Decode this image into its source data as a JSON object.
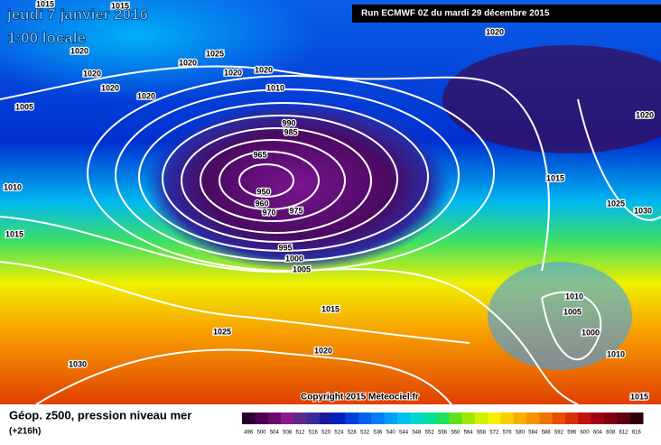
{
  "header": {
    "date": "jeudi 7 janvier 2016",
    "time": "1:00 locale",
    "run": "Run ECMWF 0Z du mardi 29 décembre 2015"
  },
  "map": {
    "copyright": "Copyright 2015 Meteociel.fr",
    "isobar_labels": [
      "1015",
      "1015",
      "1020",
      "1020",
      "1025",
      "1020",
      "1020",
      "1020",
      "1020",
      "1020",
      "1020",
      "1010",
      "1005",
      "990",
      "985",
      "965",
      "1020",
      "1015",
      "1010",
      "950",
      "960",
      "970",
      "975",
      "1025",
      "1030",
      "1015",
      "995",
      "1000",
      "1005",
      "1015",
      "1010",
      "1005",
      "1025",
      "1000",
      "1020",
      "1030",
      "1010",
      "1015"
    ]
  },
  "footer": {
    "title": "Géop. z500, pression niveau mer",
    "lead": "(+216h)"
  },
  "legend": {
    "labels": [
      496,
      500,
      504,
      508,
      512,
      516,
      520,
      524,
      528,
      532,
      536,
      540,
      544,
      548,
      552,
      556,
      560,
      564,
      568,
      572,
      576,
      580,
      584,
      588,
      592,
      596,
      600,
      604,
      608,
      612,
      616
    ],
    "colors": [
      "#2a0030",
      "#4b0050",
      "#6a0a6e",
      "#8a1a90",
      "#5a2a8a",
      "#3a2a9a",
      "#1a1aa0",
      "#0020c0",
      "#0040e0",
      "#0060f0",
      "#0080f8",
      "#00a0f8",
      "#00c0f0",
      "#00d8d0",
      "#00e0a0",
      "#20e060",
      "#60e020",
      "#a0e800",
      "#d0f000",
      "#f8f000",
      "#f8d000",
      "#f8b000",
      "#f89000",
      "#f07000",
      "#e85000",
      "#d83000",
      "#c01010",
      "#a00010",
      "#800010",
      "#600010",
      "#300008"
    ]
  }
}
